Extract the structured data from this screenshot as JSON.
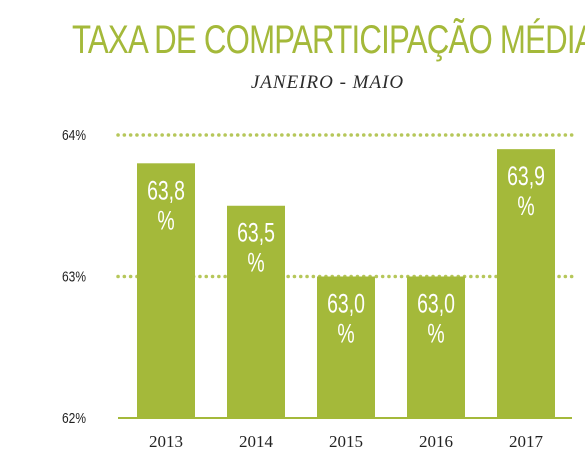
{
  "chart_data": {
    "type": "bar",
    "title": "TAXA DE COMPARTICIPAÇÃO MÉDIA",
    "subtitle": "JANEIRO - MAIO",
    "categories": [
      "2013",
      "2014",
      "2015",
      "2016",
      "2017"
    ],
    "values": [
      63.8,
      63.5,
      63.0,
      63.0,
      63.9
    ],
    "data_labels": [
      [
        "63,8",
        "%"
      ],
      [
        "63,5",
        "%"
      ],
      [
        "63,0",
        "%"
      ],
      [
        "63,0",
        "%"
      ],
      [
        "63,9",
        "%"
      ]
    ],
    "y_ticks": [
      {
        "value": 64,
        "label": "64%"
      },
      {
        "value": 63,
        "label": "63%"
      },
      {
        "value": 62,
        "label": "62%"
      }
    ],
    "ylim": [
      62,
      64
    ],
    "xlabel": "",
    "ylabel": "",
    "grid": "dotted-major",
    "bar_color": "#a4b93a",
    "grid_color": "#b6c75a",
    "axis_color": "#a4b93a"
  }
}
